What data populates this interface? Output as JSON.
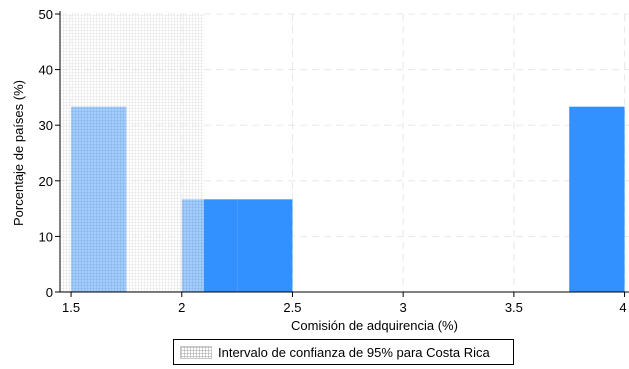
{
  "chart_data": {
    "type": "bar",
    "x": [
      1.5,
      1.75,
      2.0,
      2.25,
      3.75
    ],
    "bin_width": 0.25,
    "values": [
      33.33,
      0,
      16.67,
      16.67,
      33.33
    ],
    "title": "",
    "xlabel": "Comisión de adquirencia (%)",
    "ylabel": "Porcentaje de países (%)",
    "xlim": [
      1.45,
      4.02
    ],
    "ylim": [
      0,
      50
    ],
    "xticks": [
      1.5,
      2,
      2.5,
      3,
      3.5,
      4
    ],
    "xtick_labels": [
      "1.5",
      "2",
      "2.5",
      "3",
      "3.5",
      "4"
    ],
    "yticks": [
      0,
      10,
      20,
      30,
      40,
      50
    ],
    "ytick_labels": [
      "0",
      "10",
      "20",
      "30",
      "40",
      "50"
    ],
    "grid": true,
    "bar_color": "#3390ff",
    "confidence_interval": {
      "label": "Intervalo de confianza de 95% para Costa Rica",
      "x_range": [
        1.45,
        2.1
      ],
      "y_top": 50,
      "pattern_color": "#9a9a9a"
    },
    "legend": {
      "placement": "bottom-center",
      "entries": [
        "Intervalo de confianza de 95% para Costa Rica"
      ]
    }
  }
}
